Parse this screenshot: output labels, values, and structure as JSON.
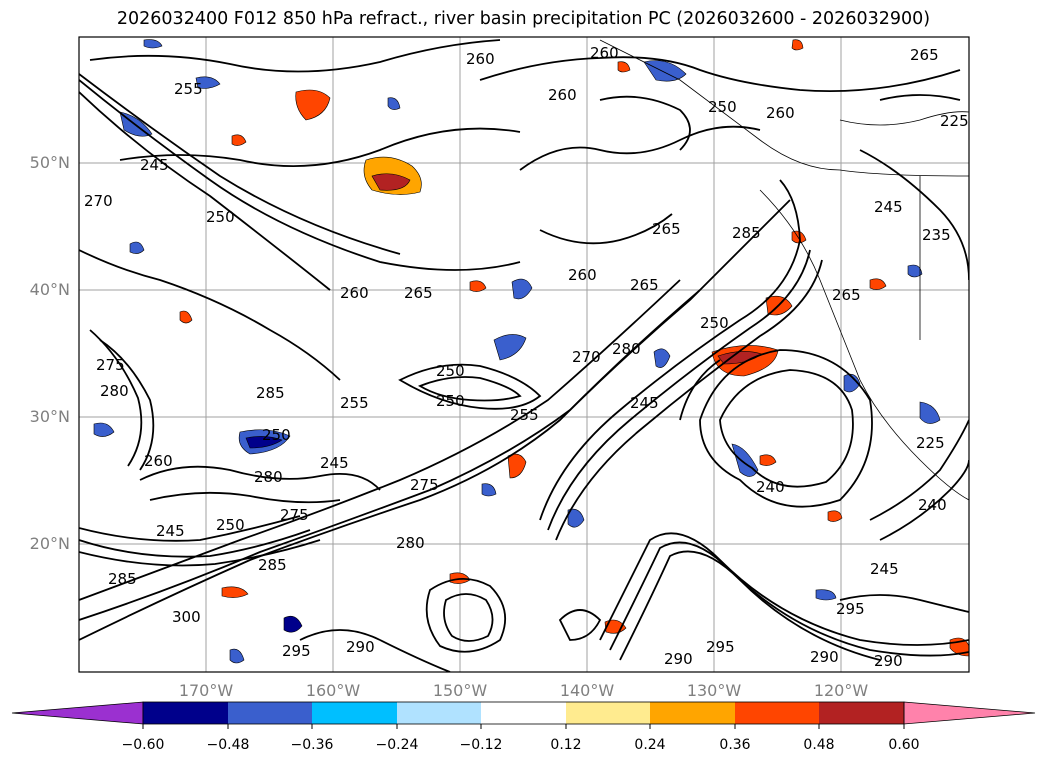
{
  "title": "2026032400 F012 850 hPa refract., river basin precipitation PC (2026032600 - 2026032900)",
  "lat_labels": [
    "50°N",
    "40°N",
    "30°N",
    "20°N"
  ],
  "lon_labels": [
    "170°W",
    "160°W",
    "150°W",
    "140°W",
    "130°W",
    "120°W"
  ],
  "colorbar": {
    "tick_labels": [
      "−0.60",
      "−0.48",
      "−0.36",
      "−0.24",
      "−0.12",
      "0.12",
      "0.24",
      "0.36",
      "0.48",
      "0.60"
    ],
    "colors": [
      "#9b30d0",
      "#00008b",
      "#3a5fcd",
      "#00bfff",
      "#b0e2ff",
      "#ffffff",
      "#ffeb8f",
      "#ffa500",
      "#ff4500",
      "#b22222",
      "#ff82ab"
    ]
  },
  "contour_labels": [
    "255",
    "260",
    "260",
    "260",
    "265",
    "260",
    "250",
    "245",
    "270",
    "260",
    "265",
    "260",
    "265",
    "250",
    "275",
    "280",
    "285",
    "250",
    "270",
    "280",
    "250",
    "255",
    "250",
    "245",
    "225",
    "255",
    "245",
    "250",
    "260",
    "275",
    "280",
    "245",
    "240",
    "275",
    "285",
    "280",
    "285",
    "300",
    "290",
    "295",
    "290",
    "295",
    "290",
    "290",
    "295",
    "245",
    "240",
    "265",
    "285",
    "265",
    "235",
    "225",
    "250",
    "245"
  ]
}
